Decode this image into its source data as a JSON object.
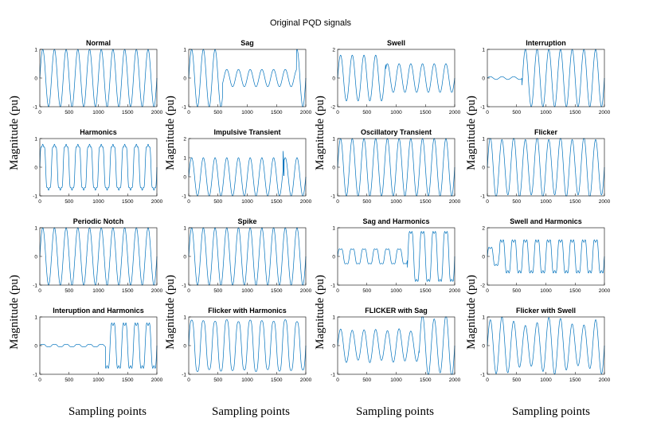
{
  "figure": {
    "title": "Original PQD signals",
    "ylabel": "Magnitude (pu)",
    "xlabel": "Sampling points",
    "line_color": "#0072BD",
    "axes_color": "#000000"
  },
  "chart_data": [
    {
      "type": "line",
      "title": "Normal",
      "xlim": [
        0,
        2000
      ],
      "ylim": [
        -1,
        1
      ],
      "xticks": [
        0,
        500,
        1000,
        1500,
        2000
      ],
      "yticks": [
        -1,
        0,
        1
      ],
      "signal": {
        "kind": "normal",
        "cycles": 10,
        "amplitude": 1
      }
    },
    {
      "type": "line",
      "title": "Sag",
      "xlim": [
        0,
        2000
      ],
      "ylim": [
        -1,
        1
      ],
      "xticks": [
        0,
        500,
        1000,
        1500,
        2000
      ],
      "yticks": [
        -1,
        0,
        1
      ],
      "signal": {
        "kind": "sag",
        "cycles": 10,
        "amplitude": 1,
        "event_start": 580,
        "event_end": 1840,
        "event_amplitude": 0.3
      }
    },
    {
      "type": "line",
      "title": "Swell",
      "xlim": [
        0,
        2000
      ],
      "ylim": [
        -2,
        2
      ],
      "xticks": [
        0,
        500,
        1000,
        1500,
        2000
      ],
      "yticks": [
        -2,
        0,
        2
      ],
      "signal": {
        "kind": "swell",
        "cycles": 10,
        "amplitude": 1,
        "event_start": 0,
        "event_end": 820,
        "event_amplitude": 1.6
      }
    },
    {
      "type": "line",
      "title": "Interruption",
      "xlim": [
        0,
        2000
      ],
      "ylim": [
        -1,
        1
      ],
      "xticks": [
        0,
        500,
        1000,
        1500,
        2000
      ],
      "yticks": [
        -1,
        0,
        1
      ],
      "signal": {
        "kind": "interruption",
        "cycles": 10,
        "amplitude": 1,
        "event_start": 0,
        "event_end": 590,
        "event_amplitude": 0.05
      }
    },
    {
      "type": "line",
      "title": "Harmonics",
      "xlim": [
        0,
        2000
      ],
      "ylim": [
        -1,
        1
      ],
      "xticks": [
        0,
        500,
        1000,
        1500,
        2000
      ],
      "yticks": [
        -1,
        0,
        1
      ],
      "signal": {
        "kind": "harmonics",
        "cycles": 10,
        "amplitude": 1
      }
    },
    {
      "type": "line",
      "title": "Impulsive Transient",
      "xlim": [
        0,
        2000
      ],
      "ylim": [
        -1,
        2
      ],
      "xticks": [
        0,
        500,
        1000,
        1500,
        2000
      ],
      "yticks": [
        -1,
        0,
        1,
        2
      ],
      "signal": {
        "kind": "impulsive",
        "cycles": 10,
        "amplitude": 1,
        "event_start": 1610,
        "event_amplitude": 1.8
      }
    },
    {
      "type": "line",
      "title": "Oscillatory Transient",
      "xlim": [
        0,
        2000
      ],
      "ylim": [
        -1,
        1
      ],
      "xticks": [
        0,
        500,
        1000,
        1500,
        2000
      ],
      "yticks": [
        -1,
        0,
        1
      ],
      "signal": {
        "kind": "normal",
        "cycles": 10,
        "amplitude": 1
      }
    },
    {
      "type": "line",
      "title": "Flicker",
      "xlim": [
        0,
        2000
      ],
      "ylim": [
        -1,
        1
      ],
      "xticks": [
        0,
        500,
        1000,
        1500,
        2000
      ],
      "yticks": [
        -1,
        0,
        1
      ],
      "signal": {
        "kind": "flicker",
        "cycles": 10,
        "amplitude": 1
      }
    },
    {
      "type": "line",
      "title": "Periodic Notch",
      "xlim": [
        0,
        2000
      ],
      "ylim": [
        -1,
        1
      ],
      "xticks": [
        0,
        500,
        1000,
        1500,
        2000
      ],
      "yticks": [
        -1,
        0,
        1
      ],
      "signal": {
        "kind": "notch",
        "cycles": 10,
        "amplitude": 1
      }
    },
    {
      "type": "line",
      "title": "Spike",
      "xlim": [
        0,
        2000
      ],
      "ylim": [
        -1,
        1
      ],
      "xticks": [
        0,
        500,
        1000,
        1500,
        2000
      ],
      "yticks": [
        -1,
        0,
        1
      ],
      "signal": {
        "kind": "normal",
        "cycles": 10,
        "amplitude": 1
      }
    },
    {
      "type": "line",
      "title": "Sag and Harmonics",
      "xlim": [
        0,
        2000
      ],
      "ylim": [
        -1,
        1
      ],
      "xticks": [
        0,
        500,
        1000,
        1500,
        2000
      ],
      "yticks": [
        -1,
        0,
        1
      ],
      "signal": {
        "kind": "sag_harm",
        "cycles": 10,
        "amplitude": 1,
        "event_start": 0,
        "event_end": 1190,
        "event_amplitude": 0.3
      }
    },
    {
      "type": "line",
      "title": "Swell and Harmonics",
      "xlim": [
        0,
        2000
      ],
      "ylim": [
        -2,
        2
      ],
      "xticks": [
        0,
        500,
        1000,
        1500,
        2000
      ],
      "yticks": [
        -2,
        0,
        2
      ],
      "signal": {
        "kind": "swell_harm",
        "cycles": 10,
        "amplitude": 1,
        "event_start": 210,
        "event_end": 1990,
        "event_amplitude": 1.45
      }
    },
    {
      "type": "line",
      "title": "Interuption and Harmonics",
      "xlim": [
        0,
        2000
      ],
      "ylim": [
        -1,
        1
      ],
      "xticks": [
        0,
        500,
        1000,
        1500,
        2000
      ],
      "yticks": [
        -1,
        0,
        1
      ],
      "signal": {
        "kind": "interruption_harm",
        "cycles": 10,
        "amplitude": 1,
        "event_start": 0,
        "event_end": 1120,
        "event_amplitude": 0.05
      }
    },
    {
      "type": "line",
      "title": "Flicker with Harmonics",
      "xlim": [
        0,
        2000
      ],
      "ylim": [
        -1,
        1
      ],
      "xticks": [
        0,
        500,
        1000,
        1500,
        2000
      ],
      "yticks": [
        -1,
        0,
        1
      ],
      "signal": {
        "kind": "flicker_harm",
        "cycles": 10,
        "amplitude": 1
      }
    },
    {
      "type": "line",
      "title": "FLICKER with Sag",
      "xlim": [
        0,
        2000
      ],
      "ylim": [
        -1,
        1
      ],
      "xticks": [
        0,
        500,
        1000,
        1500,
        2000
      ],
      "yticks": [
        -1,
        0,
        1
      ],
      "signal": {
        "kind": "flicker_sag",
        "cycles": 10,
        "amplitude": 1,
        "event_start": 0,
        "event_end": 1390,
        "event_amplitude": 0.55
      }
    },
    {
      "type": "line",
      "title": "Flicker with Swell",
      "xlim": [
        0,
        2000
      ],
      "ylim": [
        -1,
        1
      ],
      "xticks": [
        0,
        500,
        1000,
        1500,
        2000
      ],
      "yticks": [
        -1,
        0,
        1
      ],
      "signal": {
        "kind": "flicker_swell",
        "cycles": 10,
        "amplitude": 1
      }
    }
  ]
}
